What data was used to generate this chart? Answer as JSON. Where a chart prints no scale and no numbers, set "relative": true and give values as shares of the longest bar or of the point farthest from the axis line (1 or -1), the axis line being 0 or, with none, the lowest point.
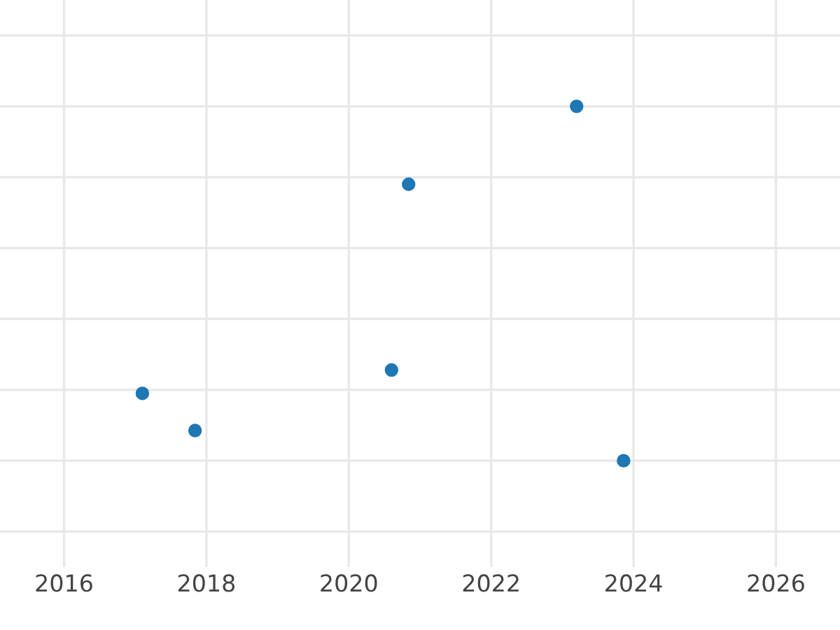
{
  "chart_data": {
    "type": "scatter",
    "relative": true,
    "x": [
      2017.1,
      2017.84,
      2020.6,
      2020.84,
      2023.2,
      2023.86
    ],
    "series": [
      {
        "color": "#1f77b4",
        "values": [
          0.19,
          0.085,
          0.256,
          0.78,
          1,
          0
        ]
      }
    ],
    "xlim": [
      2015.1,
      2026.9
    ],
    "xticks": [
      2016,
      2018,
      2020,
      2022,
      2024,
      2026
    ],
    "grid": true,
    "marker": "circle",
    "tick_labels": "x",
    "legend": false
  }
}
